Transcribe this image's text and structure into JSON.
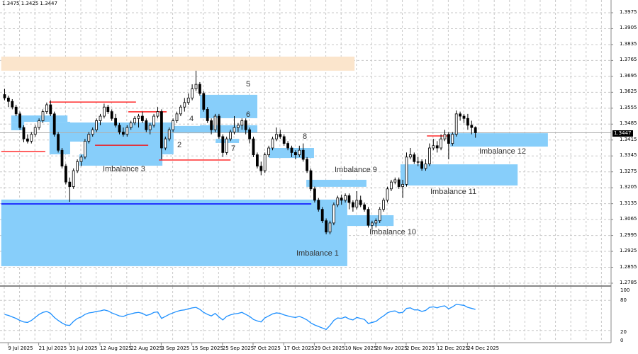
{
  "header": {
    "ohlc_text": "1.3475 1.3425 1.3447"
  },
  "chart_data": {
    "type": "candlestick",
    "price_axis": {
      "ticks": [
        "1.3975",
        "1.3905",
        "1.3835",
        "1.3765",
        "1.3695",
        "1.3625",
        "1.3555",
        "1.3485",
        "1.3415",
        "1.3345",
        "1.3275",
        "1.3205",
        "1.3135",
        "1.3065",
        "1.2995",
        "1.2925",
        "1.2855",
        "1.2785"
      ],
      "current_price": "1.3447",
      "ylim": [
        1.2785,
        1.3975
      ]
    },
    "date_axis": {
      "labels": [
        "9 Jul 2025",
        "21 Jul 2025",
        "31 Jul 2025",
        "12 Aug 2025",
        "22 Aug 2025",
        "3 Sep 2025",
        "15 Sep 2025",
        "25 Sep 2025",
        "7 Oct 2025",
        "17 Oct 2025",
        "29 Oct 2025",
        "10 Nov 2025",
        "20 Nov 2025",
        "2 Dec 2025",
        "12 Dec 2025",
        "24 Dec 2025"
      ],
      "label_bars": [
        1,
        9,
        17,
        25,
        33,
        41,
        49,
        57,
        65,
        73,
        81,
        89,
        97,
        105,
        113,
        121
      ]
    },
    "grid": true,
    "colors": {
      "zone": "#87cefa",
      "supply_zone": "#fbe5cc",
      "level": "#ff0000",
      "support_line": "#0000ff",
      "oscillator": "#1e90ff",
      "bear": "#000000",
      "bull": "#ffffff"
    },
    "candles": [
      [
        1.3615,
        1.364,
        1.359,
        1.36
      ],
      [
        1.36,
        1.361,
        1.356,
        1.3585
      ],
      [
        1.3585,
        1.3595,
        1.355,
        1.356
      ],
      [
        1.356,
        1.357,
        1.352,
        1.353
      ],
      [
        1.353,
        1.354,
        1.346,
        1.347
      ],
      [
        1.347,
        1.348,
        1.3405,
        1.342
      ],
      [
        1.342,
        1.344,
        1.34,
        1.341
      ],
      [
        1.341,
        1.345,
        1.34,
        1.344
      ],
      [
        1.344,
        1.348,
        1.343,
        1.347
      ],
      [
        1.347,
        1.351,
        1.346,
        1.35
      ],
      [
        1.35,
        1.355,
        1.349,
        1.354
      ],
      [
        1.354,
        1.358,
        1.353,
        1.357
      ],
      [
        1.357,
        1.359,
        1.352,
        1.353
      ],
      [
        1.353,
        1.354,
        1.343,
        1.344
      ],
      [
        1.344,
        1.345,
        1.336,
        1.337
      ],
      [
        1.337,
        1.338,
        1.329,
        1.33
      ],
      [
        1.33,
        1.331,
        1.322,
        1.323
      ],
      [
        1.323,
        1.325,
        1.3143,
        1.321
      ],
      [
        1.321,
        1.329,
        1.32,
        1.328
      ],
      [
        1.328,
        1.333,
        1.327,
        1.332
      ],
      [
        1.332,
        1.335,
        1.33,
        1.334
      ],
      [
        1.334,
        1.342,
        1.333,
        1.341
      ],
      [
        1.341,
        1.345,
        1.34,
        1.344
      ],
      [
        1.344,
        1.347,
        1.343,
        1.346
      ],
      [
        1.346,
        1.351,
        1.345,
        1.35
      ],
      [
        1.35,
        1.353,
        1.348,
        1.352
      ],
      [
        1.352,
        1.3575,
        1.351,
        1.356
      ],
      [
        1.356,
        1.357,
        1.353,
        1.354
      ],
      [
        1.354,
        1.355,
        1.35,
        1.351
      ],
      [
        1.351,
        1.353,
        1.347,
        1.348
      ],
      [
        1.348,
        1.349,
        1.344,
        1.345
      ],
      [
        1.345,
        1.347,
        1.343,
        1.344
      ],
      [
        1.344,
        1.348,
        1.343,
        1.347
      ],
      [
        1.347,
        1.35,
        1.346,
        1.349
      ],
      [
        1.349,
        1.352,
        1.348,
        1.351
      ],
      [
        1.351,
        1.353,
        1.347,
        1.352
      ],
      [
        1.352,
        1.354,
        1.349,
        1.35
      ],
      [
        1.35,
        1.351,
        1.345,
        1.346
      ],
      [
        1.346,
        1.349,
        1.344,
        1.348
      ],
      [
        1.348,
        1.353,
        1.347,
        1.352
      ],
      [
        1.352,
        1.356,
        1.351,
        1.354
      ],
      [
        1.354,
        1.355,
        1.333,
        1.338
      ],
      [
        1.338,
        1.343,
        1.337,
        1.342
      ],
      [
        1.342,
        1.347,
        1.341,
        1.346
      ],
      [
        1.346,
        1.351,
        1.345,
        1.35
      ],
      [
        1.35,
        1.354,
        1.349,
        1.353
      ],
      [
        1.353,
        1.357,
        1.352,
        1.356
      ],
      [
        1.356,
        1.36,
        1.354,
        1.358
      ],
      [
        1.358,
        1.362,
        1.357,
        1.36
      ],
      [
        1.36,
        1.366,
        1.359,
        1.364
      ],
      [
        1.364,
        1.372,
        1.363,
        1.366
      ],
      [
        1.366,
        1.367,
        1.361,
        1.362
      ],
      [
        1.362,
        1.363,
        1.354,
        1.355
      ],
      [
        1.355,
        1.356,
        1.349,
        1.35
      ],
      [
        1.35,
        1.351,
        1.344,
        1.346
      ],
      [
        1.346,
        1.353,
        1.345,
        1.352
      ],
      [
        1.352,
        1.353,
        1.342,
        1.343
      ],
      [
        1.343,
        1.344,
        1.334,
        1.336
      ],
      [
        1.336,
        1.343,
        1.335,
        1.342
      ],
      [
        1.342,
        1.346,
        1.341,
        1.345
      ],
      [
        1.345,
        1.352,
        1.344,
        1.347
      ],
      [
        1.347,
        1.349,
        1.345,
        1.348
      ],
      [
        1.348,
        1.351,
        1.346,
        1.35
      ],
      [
        1.35,
        1.351,
        1.344,
        1.346
      ],
      [
        1.346,
        1.347,
        1.34,
        1.342
      ],
      [
        1.342,
        1.343,
        1.334,
        1.335
      ],
      [
        1.335,
        1.336,
        1.329,
        1.33
      ],
      [
        1.33,
        1.332,
        1.326,
        1.328
      ],
      [
        1.328,
        1.336,
        1.327,
        1.335
      ],
      [
        1.335,
        1.339,
        1.334,
        1.338
      ],
      [
        1.338,
        1.343,
        1.337,
        1.342
      ],
      [
        1.342,
        1.347,
        1.341,
        1.344
      ],
      [
        1.344,
        1.346,
        1.342,
        1.343
      ],
      [
        1.343,
        1.344,
        1.339,
        1.34
      ],
      [
        1.34,
        1.341,
        1.337,
        1.338
      ],
      [
        1.338,
        1.339,
        1.334,
        1.336
      ],
      [
        1.336,
        1.337,
        1.333,
        1.335
      ],
      [
        1.335,
        1.339,
        1.334,
        1.337
      ],
      [
        1.337,
        1.34,
        1.332,
        1.333
      ],
      [
        1.333,
        1.334,
        1.327,
        1.328
      ],
      [
        1.328,
        1.329,
        1.319,
        1.32
      ],
      [
        1.32,
        1.321,
        1.314,
        1.315
      ],
      [
        1.315,
        1.316,
        1.31,
        1.311
      ],
      [
        1.311,
        1.312,
        1.305,
        1.306
      ],
      [
        1.306,
        1.307,
        1.3,
        1.301
      ],
      [
        1.301,
        1.306,
        1.3,
        1.305
      ],
      [
        1.305,
        1.314,
        1.304,
        1.313
      ],
      [
        1.313,
        1.317,
        1.312,
        1.316
      ],
      [
        1.316,
        1.3175,
        1.313,
        1.315
      ],
      [
        1.315,
        1.318,
        1.314,
        1.317
      ],
      [
        1.317,
        1.318,
        1.311,
        1.314
      ],
      [
        1.314,
        1.315,
        1.31,
        1.312
      ],
      [
        1.312,
        1.319,
        1.311,
        1.315
      ],
      [
        1.315,
        1.317,
        1.312,
        1.313
      ],
      [
        1.313,
        1.314,
        1.31,
        1.311
      ],
      [
        1.311,
        1.312,
        1.303,
        1.304
      ],
      [
        1.304,
        1.306,
        1.302,
        1.305
      ],
      [
        1.305,
        1.307,
        1.303,
        1.306
      ],
      [
        1.306,
        1.312,
        1.305,
        1.311
      ],
      [
        1.311,
        1.316,
        1.31,
        1.315
      ],
      [
        1.315,
        1.321,
        1.314,
        1.32
      ],
      [
        1.32,
        1.324,
        1.319,
        1.323
      ],
      [
        1.323,
        1.325,
        1.322,
        1.324
      ],
      [
        1.324,
        1.325,
        1.32,
        1.321
      ],
      [
        1.321,
        1.324,
        1.316,
        1.322
      ],
      [
        1.322,
        1.336,
        1.321,
        1.334
      ],
      [
        1.334,
        1.338,
        1.333,
        1.335
      ],
      [
        1.335,
        1.336,
        1.331,
        1.332
      ],
      [
        1.332,
        1.334,
        1.33,
        1.332
      ],
      [
        1.332,
        1.333,
        1.328,
        1.329
      ],
      [
        1.329,
        1.333,
        1.328,
        1.331
      ],
      [
        1.331,
        1.34,
        1.33,
        1.338
      ],
      [
        1.338,
        1.342,
        1.337,
        1.339
      ],
      [
        1.339,
        1.341,
        1.336,
        1.338
      ],
      [
        1.338,
        1.344,
        1.337,
        1.342
      ],
      [
        1.342,
        1.346,
        1.341,
        1.344
      ],
      [
        1.344,
        1.345,
        1.333,
        1.34
      ],
      [
        1.34,
        1.345,
        1.339,
        1.344
      ],
      [
        1.344,
        1.3545,
        1.343,
        1.353
      ],
      [
        1.353,
        1.354,
        1.35,
        1.352
      ],
      [
        1.352,
        1.353,
        1.349,
        1.351
      ],
      [
        1.351,
        1.353,
        1.346,
        1.348
      ],
      [
        1.348,
        1.35,
        1.344,
        1.347
      ],
      [
        1.347,
        1.3475,
        1.3425,
        1.3447
      ]
    ],
    "supply_zone": {
      "bars": [
        -0.6,
        91.7
      ],
      "price": [
        1.372,
        1.3782
      ]
    },
    "zones": [
      {
        "bars": [
          -0.6,
          89.8
        ],
        "price": [
          1.286,
          1.3153
        ]
      },
      {
        "bars": [
          2.0,
          16.7
        ],
        "price": [
          1.3495,
          1.3523
        ]
      },
      {
        "bars": [
          2.0,
          5.4
        ],
        "price": [
          1.3458,
          1.3495
        ]
      },
      {
        "bars": [
          12.0,
          17.4
        ],
        "price": [
          1.3352,
          1.3495
        ]
      },
      {
        "bars": [
          17.0,
          44.4
        ],
        "price": [
          1.3408,
          1.3492
        ]
      },
      {
        "bars": [
          21.1,
          44.4
        ],
        "price": [
          1.3352,
          1.3439
        ]
      },
      {
        "bars": [
          19.8,
          41.5
        ],
        "price": [
          1.3302,
          1.3352
        ]
      },
      {
        "bars": [
          44.4,
          55.0
        ],
        "price": [
          1.3445,
          1.3477
        ]
      },
      {
        "bars": [
          51.3,
          66.3
        ],
        "price": [
          1.3511,
          1.3614
        ]
      },
      {
        "bars": [
          51.3,
          66.3
        ],
        "price": [
          1.3448,
          1.348
        ]
      },
      {
        "bars": [
          55.4,
          61.5
        ],
        "price": [
          1.3402,
          1.342
        ]
      },
      {
        "bars": [
          69.3,
          81.1
        ],
        "price": [
          1.3336,
          1.338
        ]
      },
      {
        "bars": [
          79.1,
          94.8
        ],
        "price": [
          1.3209,
          1.324
        ]
      },
      {
        "bars": [
          89.8,
          101.9
        ],
        "price": [
          1.3037,
          1.3084
        ]
      },
      {
        "bars": [
          103.7,
          134.3
        ],
        "price": [
          1.3215,
          1.3308
        ]
      },
      {
        "bars": [
          116.7,
          142.2
        ],
        "price": [
          1.3386,
          1.3445
        ]
      }
    ],
    "support_line": {
      "bars": [
        -0.6,
        80.4
      ],
      "price": 1.3134
    },
    "levels": [
      {
        "bars": [
          -0.6,
          10.9
        ],
        "price": 1.3364
      },
      {
        "bars": [
          11.9,
          34.6
        ],
        "price": 1.3582
      },
      {
        "bars": [
          23.9,
          37.8
        ],
        "price": 1.3392
      },
      {
        "bars": [
          32.6,
          42.6
        ],
        "price": 1.3539
      },
      {
        "bars": [
          40.6,
          59.3
        ],
        "price": 1.3327
      },
      {
        "bars": [
          110.6,
          116.7
        ],
        "price": 1.3433
      }
    ],
    "annotations": [
      "Imbalance 1",
      "2",
      "Imbalance 3",
      "4",
      "5",
      "6",
      "7",
      "8",
      "Imbalance 9",
      "Imbalance 10",
      "Imbalance 11",
      "Imbalance 12"
    ],
    "oscillator": {
      "ticks": [
        "100",
        "80",
        "20",
        "0"
      ],
      "levels": [
        80,
        20
      ],
      "ylim": [
        0,
        100
      ],
      "values": [
        52,
        50,
        47,
        44,
        40,
        37,
        36,
        40,
        46,
        52,
        56,
        58,
        54,
        46,
        40,
        35,
        31,
        30,
        38,
        44,
        47,
        52,
        55,
        56,
        58,
        59,
        61,
        59,
        55,
        52,
        49,
        48,
        51,
        53,
        55,
        56,
        54,
        50,
        52,
        56,
        57,
        44,
        48,
        52,
        55,
        58,
        60,
        61,
        63,
        65,
        66,
        62,
        56,
        52,
        49,
        54,
        47,
        41,
        48,
        51,
        53,
        54,
        56,
        52,
        48,
        42,
        39,
        37,
        45,
        49,
        53,
        55,
        54,
        51,
        49,
        47,
        46,
        48,
        45,
        41,
        35,
        31,
        28,
        25,
        22,
        30,
        40,
        45,
        44,
        47,
        43,
        41,
        46,
        44,
        42,
        34,
        36,
        38,
        44,
        49,
        55,
        58,
        59,
        55,
        56,
        64,
        65,
        61,
        61,
        58,
        60,
        66,
        67,
        65,
        68,
        69,
        63,
        67,
        72,
        71,
        70,
        66,
        64,
        62
      ]
    }
  }
}
